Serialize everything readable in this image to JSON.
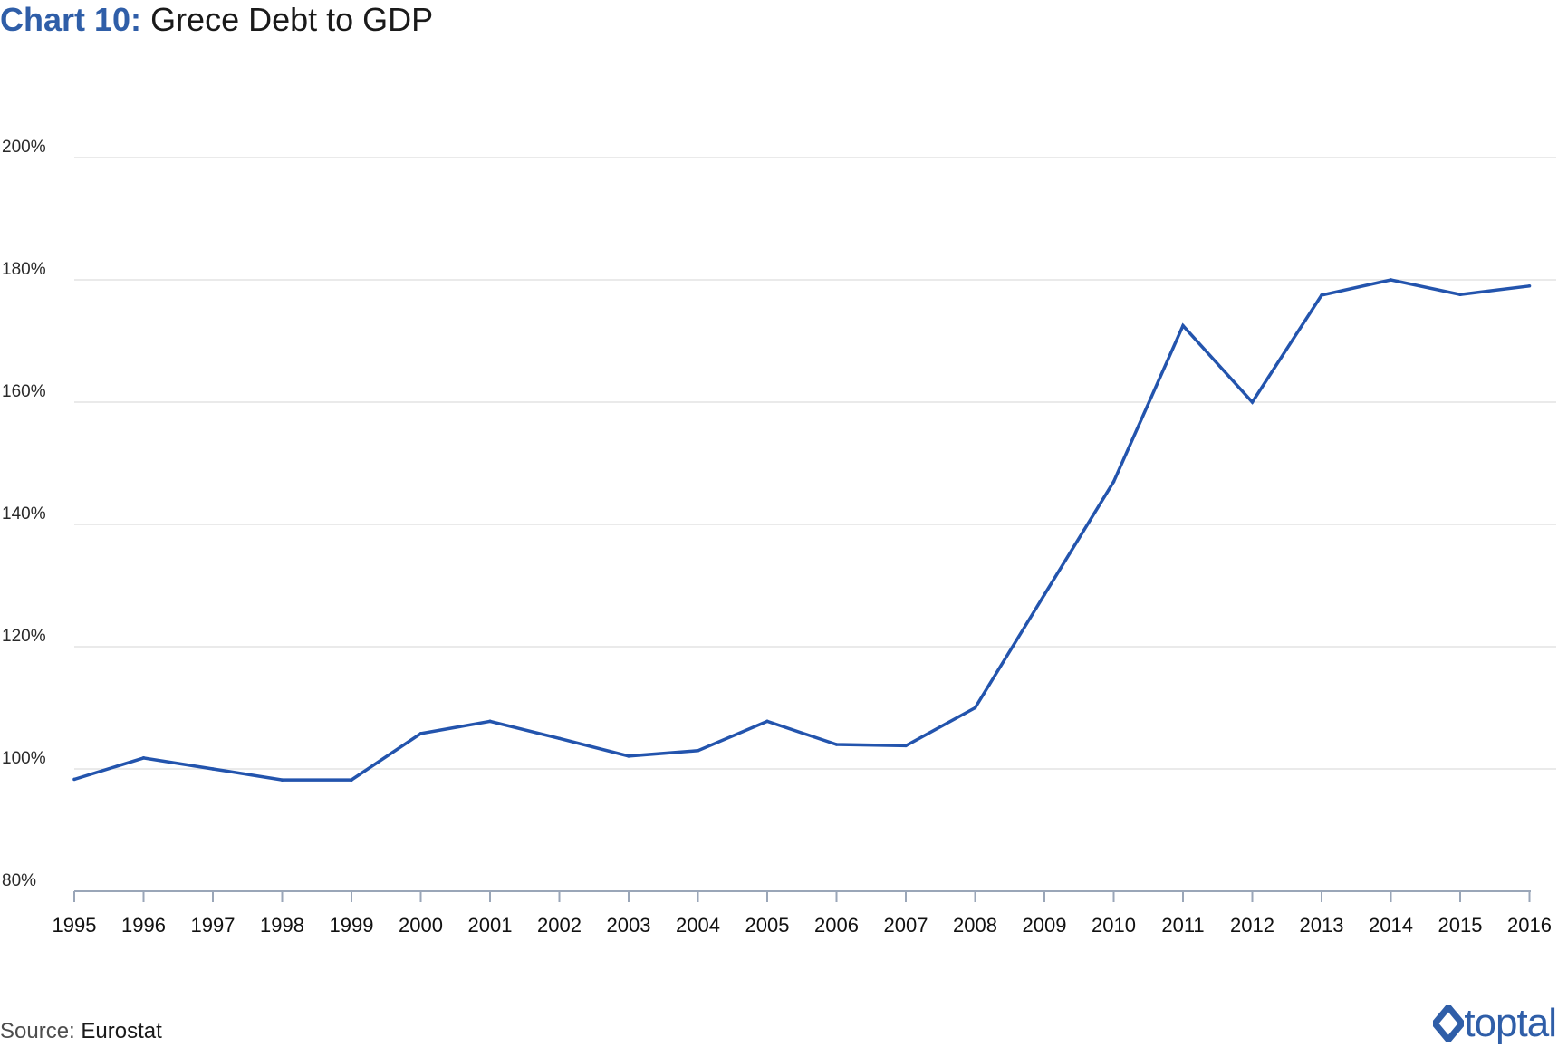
{
  "title": {
    "prefix": "Chart 10:",
    "main": "Grece Debt to GDP"
  },
  "source": {
    "label": "Source:",
    "value": "Eurostat"
  },
  "logo_text": "toptal",
  "colors": {
    "line": "#2354ad",
    "title_prefix": "#2f5ea8",
    "grid": "#e3e3e3",
    "axis": "#9aa6b8",
    "logo": "#2f5ea8"
  },
  "chart_data": {
    "type": "line",
    "title": "Grece Debt to GDP",
    "xlabel": "",
    "ylabel": "",
    "ylim": [
      80,
      200
    ],
    "grid": true,
    "yticks": [
      {
        "value": 80,
        "label": "80%"
      },
      {
        "value": 100,
        "label": "100%"
      },
      {
        "value": 120,
        "label": "120%"
      },
      {
        "value": 140,
        "label": "140%"
      },
      {
        "value": 160,
        "label": "160%"
      },
      {
        "value": 180,
        "label": "180%"
      },
      {
        "value": 200,
        "label": "200%"
      }
    ],
    "x": [
      "1995",
      "1996",
      "1997",
      "1998",
      "1999",
      "2000",
      "2001",
      "2002",
      "2003",
      "2004",
      "2005",
      "2006",
      "2007",
      "2008",
      "2009",
      "2010",
      "2011",
      "2012",
      "2013",
      "2014",
      "2015",
      "2016"
    ],
    "series": [
      {
        "values": [
          98.3,
          101.8,
          100.0,
          98.2,
          98.2,
          105.8,
          107.8,
          105.0,
          102.1,
          103.0,
          107.8,
          104.0,
          103.8,
          110.0,
          128.5,
          147.0,
          172.5,
          160.0,
          177.5,
          180.0,
          177.6,
          179.0
        ]
      }
    ]
  }
}
